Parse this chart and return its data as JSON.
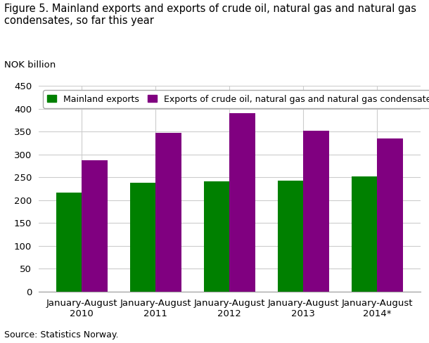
{
  "title_line1": "Figure 5. Mainland exports and exports of crude oil, natural gas and natural gas",
  "title_line2": "condensates, so far this year",
  "ylabel": "NOK billion",
  "source": "Source: Statistics Norway.",
  "categories": [
    "January-August\n2010",
    "January-August\n2011",
    "January-August\n2012",
    "January-August\n2013",
    "January-August\n2014*"
  ],
  "mainland_values": [
    217,
    238,
    241,
    242,
    252
  ],
  "oil_gas_values": [
    287,
    347,
    390,
    351,
    335
  ],
  "mainland_color": "#008000",
  "oil_gas_color": "#800080",
  "legend_mainland": "Mainland exports",
  "legend_oil_gas": "Exports of crude oil, natural gas and natural gas condensates",
  "ylim": [
    0,
    450
  ],
  "yticks": [
    0,
    50,
    100,
    150,
    200,
    250,
    300,
    350,
    400,
    450
  ],
  "bar_width": 0.35,
  "background_color": "#ffffff",
  "grid_color": "#cccccc",
  "title_fontsize": 10.5,
  "axis_fontsize": 9.5,
  "legend_fontsize": 9,
  "source_fontsize": 9
}
